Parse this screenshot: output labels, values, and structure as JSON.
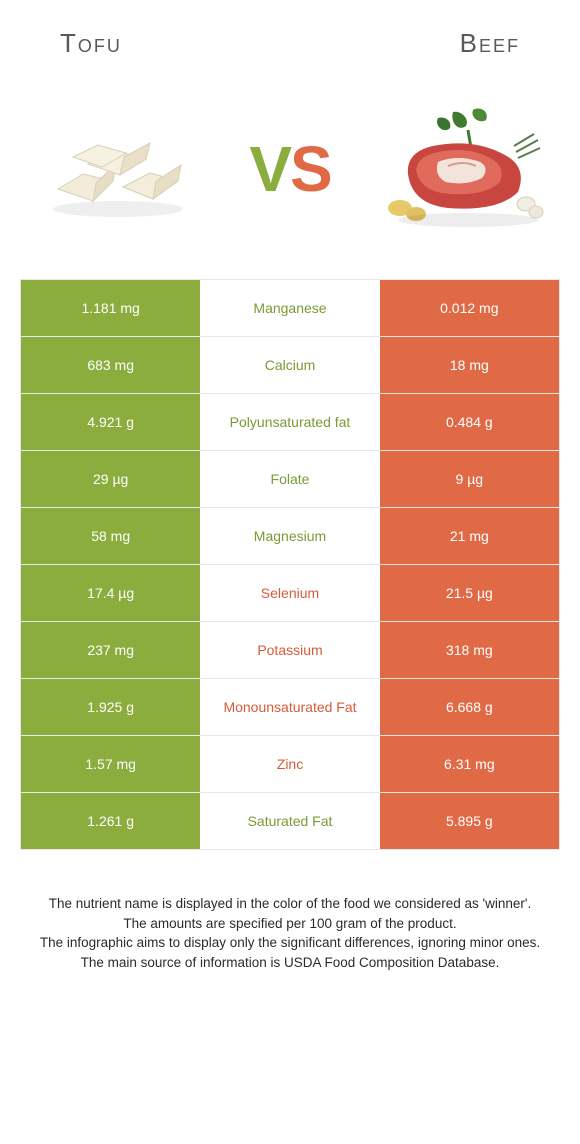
{
  "header": {
    "left_title": "Tofu",
    "right_title": "Beef"
  },
  "vs": {
    "v": "V",
    "s": "S"
  },
  "colors": {
    "green": "#8aad3d",
    "orange": "#e06a46",
    "green_text": "#7a9a34",
    "orange_text": "#d45c3a",
    "header_text": "#595959",
    "border": "#e8e8e8",
    "bg": "#ffffff"
  },
  "rows": [
    {
      "left": "1.181 mg",
      "label": "Manganese",
      "winner": "green",
      "right": "0.012 mg"
    },
    {
      "left": "683 mg",
      "label": "Calcium",
      "winner": "green",
      "right": "18 mg"
    },
    {
      "left": "4.921 g",
      "label": "Polyunsaturated fat",
      "winner": "green",
      "right": "0.484 g"
    },
    {
      "left": "29 µg",
      "label": "Folate",
      "winner": "green",
      "right": "9 µg"
    },
    {
      "left": "58 mg",
      "label": "Magnesium",
      "winner": "green",
      "right": "21 mg"
    },
    {
      "left": "17.4 µg",
      "label": "Selenium",
      "winner": "orange",
      "right": "21.5 µg"
    },
    {
      "left": "237 mg",
      "label": "Potassium",
      "winner": "orange",
      "right": "318 mg"
    },
    {
      "left": "1.925 g",
      "label": "Monounsaturated Fat",
      "winner": "orange",
      "right": "6.668 g"
    },
    {
      "left": "1.57 mg",
      "label": "Zinc",
      "winner": "orange",
      "right": "6.31 mg"
    },
    {
      "left": "1.261 g",
      "label": "Saturated Fat",
      "winner": "green",
      "right": "5.895 g"
    }
  ],
  "footer": {
    "line1": "The nutrient name is displayed in the color of the food we considered as 'winner'.",
    "line2": "The amounts are specified per 100 gram of the product.",
    "line3": "The infographic aims to display only the significant differences, ignoring minor ones.",
    "line4": "The main source of information is USDA Food Composition Database."
  }
}
